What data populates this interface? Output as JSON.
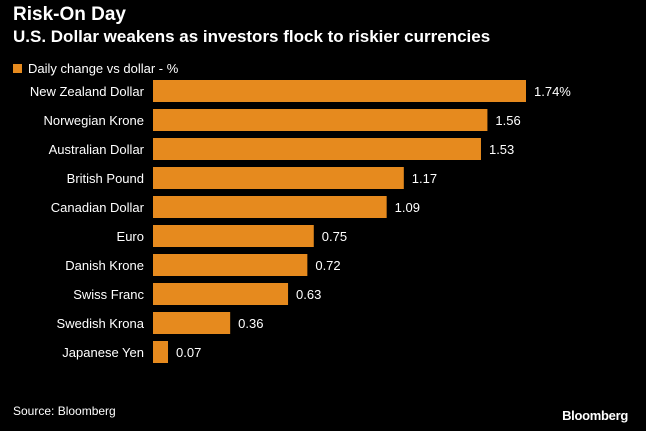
{
  "header": {
    "title": "Risk-On Day",
    "subtitle": "U.S. Dollar weakens as investors flock to riskier currencies"
  },
  "legend": {
    "label": "Daily change vs dollar - %"
  },
  "footer": {
    "source": "Source: Bloomberg",
    "brand": "Bloomberg"
  },
  "colors": {
    "background": "#000000",
    "bar": "#E68A1E",
    "text": "#FFFFFF"
  },
  "chart_data": {
    "type": "bar",
    "orientation": "horizontal",
    "title": "Risk-On Day",
    "subtitle": "U.S. Dollar weakens as investors flock to riskier currencies",
    "xlabel": "",
    "ylabel": "",
    "grid": false,
    "legend_position": "top-left",
    "xlim": [
      0,
      1.74
    ],
    "categories": [
      "New Zealand Dollar",
      "Norwegian Krone",
      "Australian Dollar",
      "British Pound",
      "Canadian Dollar",
      "Euro",
      "Danish Krone",
      "Swiss Franc",
      "Swedish Krona",
      "Japanese Yen"
    ],
    "series": [
      {
        "name": "Daily change vs dollar - %",
        "values": [
          1.74,
          1.56,
          1.53,
          1.17,
          1.09,
          0.75,
          0.72,
          0.63,
          0.36,
          0.07
        ]
      }
    ],
    "value_labels": [
      "1.74%",
      "1.56",
      "1.53",
      "1.17",
      "1.09",
      "0.75",
      "0.72",
      "0.63",
      "0.36",
      "0.07"
    ]
  }
}
